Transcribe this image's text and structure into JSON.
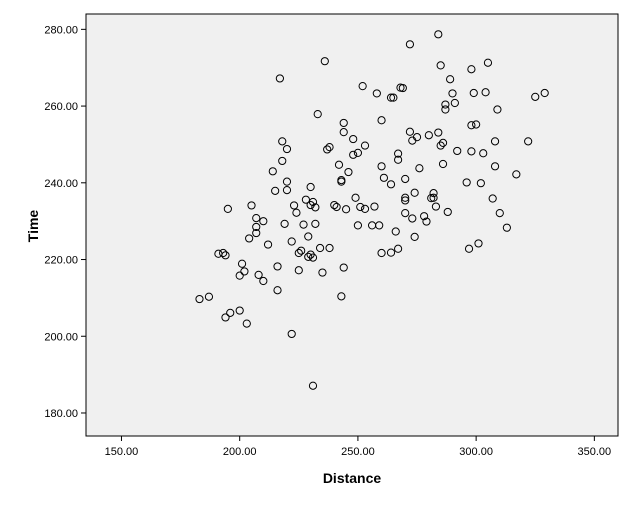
{
  "chart_data": {
    "type": "scatter",
    "title": "",
    "xlabel": "Distance",
    "ylabel": "Time",
    "xlim": [
      135,
      360
    ],
    "ylim": [
      174,
      284
    ],
    "xticks": [
      150,
      200,
      250,
      300,
      350
    ],
    "yticks": [
      180,
      200,
      220,
      240,
      260,
      280
    ],
    "xtick_labels": [
      "150.00",
      "200.00",
      "250.00",
      "300.00",
      "350.00"
    ],
    "ytick_labels": [
      "180.00",
      "200.00",
      "220.00",
      "240.00",
      "260.00",
      "280.00"
    ],
    "grid": false,
    "plot_background": "#f0f0f0",
    "marker": "open-circle",
    "points": [
      [
        183,
        209.7
      ],
      [
        187,
        210.3
      ],
      [
        191,
        221.5
      ],
      [
        193,
        221.7
      ],
      [
        194,
        221.1
      ],
      [
        194,
        204.9
      ],
      [
        195,
        233.2
      ],
      [
        196,
        206.1
      ],
      [
        200,
        206.7
      ],
      [
        200,
        215.8
      ],
      [
        201,
        218.9
      ],
      [
        202,
        216.9
      ],
      [
        203,
        203.3
      ],
      [
        204,
        225.5
      ],
      [
        205,
        234.1
      ],
      [
        207,
        230.8
      ],
      [
        207,
        228.5
      ],
      [
        207,
        226.9
      ],
      [
        208,
        216.0
      ],
      [
        210,
        230.0
      ],
      [
        210,
        214.4
      ],
      [
        212,
        223.9
      ],
      [
        214,
        243.0
      ],
      [
        215,
        237.9
      ],
      [
        216,
        218.2
      ],
      [
        216,
        212.0
      ],
      [
        217,
        267.2
      ],
      [
        218,
        250.8
      ],
      [
        218,
        245.7
      ],
      [
        219,
        229.3
      ],
      [
        220,
        238.1
      ],
      [
        220,
        240.3
      ],
      [
        220,
        248.8
      ],
      [
        222,
        224.7
      ],
      [
        222,
        200.6
      ],
      [
        223,
        234.1
      ],
      [
        224,
        232.2
      ],
      [
        225,
        221.7
      ],
      [
        225,
        217.2
      ],
      [
        226,
        222.3
      ],
      [
        227,
        229.1
      ],
      [
        228,
        235.6
      ],
      [
        229,
        226.0
      ],
      [
        229,
        220.7
      ],
      [
        230,
        234.2
      ],
      [
        230,
        221.3
      ],
      [
        230,
        238.9
      ],
      [
        231,
        235.0
      ],
      [
        231,
        220.5
      ],
      [
        231,
        187.1
      ],
      [
        232,
        233.6
      ],
      [
        232,
        229.3
      ],
      [
        233,
        257.9
      ],
      [
        234,
        223.0
      ],
      [
        235,
        216.6
      ],
      [
        236,
        271.7
      ],
      [
        237,
        248.7
      ],
      [
        238,
        249.3
      ],
      [
        238,
        223.0
      ],
      [
        240,
        234.2
      ],
      [
        241,
        233.7
      ],
      [
        242,
        244.7
      ],
      [
        243,
        240.7
      ],
      [
        243,
        240.3
      ],
      [
        243,
        210.4
      ],
      [
        244,
        255.6
      ],
      [
        244,
        253.2
      ],
      [
        244,
        217.9
      ],
      [
        245,
        233.1
      ],
      [
        246,
        242.8
      ],
      [
        248,
        247.3
      ],
      [
        248,
        251.4
      ],
      [
        249,
        236.1
      ],
      [
        250,
        228.9
      ],
      [
        250,
        247.8
      ],
      [
        251,
        233.7
      ],
      [
        252,
        265.2
      ],
      [
        253,
        249.7
      ],
      [
        253,
        233.2
      ],
      [
        256,
        228.9
      ],
      [
        257,
        233.8
      ],
      [
        258,
        263.3
      ],
      [
        259,
        228.9
      ],
      [
        260,
        244.3
      ],
      [
        260,
        256.3
      ],
      [
        260,
        221.7
      ],
      [
        261,
        241.3
      ],
      [
        264,
        262.2
      ],
      [
        264,
        239.6
      ],
      [
        264,
        221.8
      ],
      [
        265,
        262.2
      ],
      [
        266,
        227.3
      ],
      [
        267,
        246.0
      ],
      [
        267,
        247.6
      ],
      [
        267,
        222.8
      ],
      [
        268,
        264.8
      ],
      [
        269,
        264.7
      ],
      [
        270,
        241.0
      ],
      [
        270,
        236.1
      ],
      [
        270,
        235.4
      ],
      [
        270,
        232.1
      ],
      [
        272,
        276.1
      ],
      [
        272,
        253.3
      ],
      [
        273,
        251.0
      ],
      [
        273,
        230.7
      ],
      [
        274,
        237.4
      ],
      [
        274,
        225.9
      ],
      [
        275,
        251.9
      ],
      [
        276,
        243.8
      ],
      [
        278,
        231.3
      ],
      [
        279,
        229.9
      ],
      [
        280,
        252.4
      ],
      [
        281,
        236.0
      ],
      [
        282,
        236.1
      ],
      [
        282,
        237.3
      ],
      [
        283,
        233.8
      ],
      [
        284,
        278.7
      ],
      [
        284,
        253.1
      ],
      [
        285,
        270.6
      ],
      [
        285,
        249.7
      ],
      [
        286,
        250.4
      ],
      [
        286,
        244.9
      ],
      [
        287,
        260.4
      ],
      [
        287,
        259.1
      ],
      [
        288,
        232.4
      ],
      [
        289,
        267.0
      ],
      [
        290,
        263.3
      ],
      [
        291,
        260.8
      ],
      [
        292,
        248.3
      ],
      [
        296,
        240.1
      ],
      [
        297,
        222.8
      ],
      [
        298,
        255.0
      ],
      [
        298,
        248.2
      ],
      [
        298,
        269.6
      ],
      [
        299,
        263.4
      ],
      [
        300,
        255.2
      ],
      [
        301,
        224.2
      ],
      [
        302,
        239.9
      ],
      [
        303,
        247.7
      ],
      [
        304,
        263.6
      ],
      [
        305,
        271.3
      ],
      [
        307,
        235.9
      ],
      [
        308,
        244.3
      ],
      [
        308,
        250.8
      ],
      [
        309,
        259.1
      ],
      [
        310,
        232.1
      ],
      [
        313,
        228.3
      ],
      [
        317,
        242.2
      ],
      [
        322,
        250.8
      ],
      [
        325,
        262.4
      ],
      [
        329,
        263.4
      ]
    ]
  }
}
